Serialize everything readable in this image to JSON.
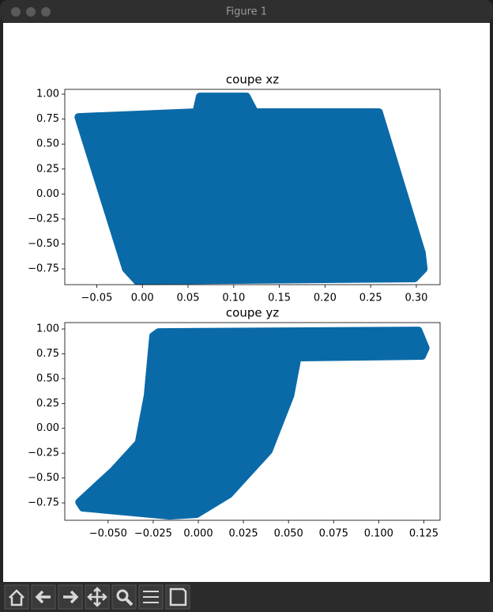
{
  "window": {
    "title": "Figure 1"
  },
  "chart_data": [
    {
      "type": "scatter",
      "title": "coupe xz",
      "color": "#0a6aa8",
      "x": [
        -0.07,
        0.059,
        0.063,
        0.114,
        0.123,
        0.259,
        0.306,
        0.308,
        0.298,
        -0.006,
        -0.018
      ],
      "y": [
        0.77,
        0.818,
        0.976,
        0.976,
        0.818,
        0.818,
        -0.591,
        -0.75,
        -0.845,
        -0.869,
        -0.75
      ],
      "xlim": [
        -0.085,
        0.326
      ],
      "ylim": [
        -0.908,
        1.048
      ],
      "xticks": [
        {
          "value": -0.05,
          "label": "−0.05"
        },
        {
          "value": 0,
          "label": "0.00"
        },
        0.05,
        {
          "value": 0.1,
          "label": "0.10"
        },
        0.15,
        {
          "value": 0.2,
          "label": "0.20"
        },
        0.25,
        {
          "value": 0.3,
          "label": "0.30"
        }
      ],
      "yticks": [
        {
          "value": -0.75,
          "label": "−0.75"
        },
        {
          "value": -0.5,
          "label": "−0.50"
        },
        {
          "value": -0.25,
          "label": "−0.25"
        },
        {
          "value": 0,
          "label": "0.00"
        },
        0.25,
        {
          "value": 0.5,
          "label": "0.50"
        },
        0.75,
        {
          "value": 1,
          "label": "1.00"
        }
      ]
    },
    {
      "type": "scatter",
      "title": "coupe yz",
      "color": "#0a6aa8",
      "x": [
        -0.066,
        -0.047,
        -0.033,
        -0.028,
        -0.025,
        -0.022,
        0.122,
        0.126,
        0.124,
        0.055,
        0.051,
        0.039,
        0.017,
        -0.001,
        -0.016,
        -0.064
      ],
      "y": [
        -0.742,
        -0.424,
        -0.146,
        0.332,
        0.928,
        0.968,
        0.984,
        0.809,
        0.73,
        0.714,
        0.332,
        -0.225,
        -0.663,
        -0.862,
        -0.878,
        -0.798
      ],
      "xlim": [
        -0.074,
        0.134
      ],
      "ylim": [
        -0.925,
        1.064
      ],
      "xticks": [
        {
          "value": -0.05,
          "label": "−0.050"
        },
        {
          "value": -0.025,
          "label": "−0.025"
        },
        {
          "value": 0,
          "label": "0.000"
        },
        0.025,
        {
          "value": 0.05,
          "label": "0.050"
        },
        0.075,
        {
          "value": 0.1,
          "label": "0.100"
        },
        0.125
      ],
      "yticks": [
        {
          "value": -0.75,
          "label": "−0.75"
        },
        {
          "value": -0.5,
          "label": "−0.50"
        },
        {
          "value": -0.25,
          "label": "−0.25"
        },
        {
          "value": 0,
          "label": "0.00"
        },
        0.25,
        {
          "value": 0.5,
          "label": "0.50"
        },
        0.75,
        {
          "value": 1,
          "label": "1.00"
        }
      ]
    }
  ]
}
